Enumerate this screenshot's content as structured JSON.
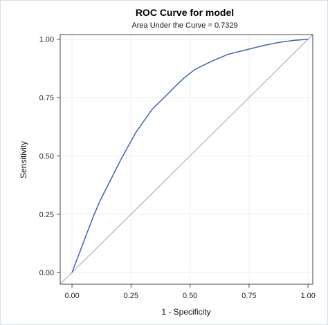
{
  "chart_data": {
    "type": "line",
    "title": "ROC Curve for model",
    "subtitle": "Area Under the Curve = 0.7329",
    "xlabel": "1 - Specificity",
    "ylabel": "Sensitivity",
    "xlim": [
      -0.05,
      1.02
    ],
    "ylim": [
      -0.05,
      1.02
    ],
    "xticks": [
      "0.00",
      "0.25",
      "0.50",
      "0.75",
      "1.00"
    ],
    "yticks": [
      "0.00",
      "0.25",
      "0.50",
      "0.75",
      "1.00"
    ],
    "grid": true,
    "series": [
      {
        "color": "#3f5fc8",
        "x": [
          0.0,
          0.03,
          0.06,
          0.09,
          0.12,
          0.16,
          0.21,
          0.27,
          0.34,
          0.41,
          0.47,
          0.52,
          0.59,
          0.66,
          0.74,
          0.81,
          0.88,
          0.94,
          1.0
        ],
        "y": [
          0.0,
          0.08,
          0.16,
          0.24,
          0.31,
          0.39,
          0.49,
          0.6,
          0.7,
          0.77,
          0.83,
          0.87,
          0.905,
          0.935,
          0.955,
          0.973,
          0.987,
          0.995,
          1.0
        ]
      },
      {
        "color": "#8fa9b5",
        "x": [
          0,
          1
        ],
        "y": [
          0,
          1
        ]
      }
    ]
  }
}
